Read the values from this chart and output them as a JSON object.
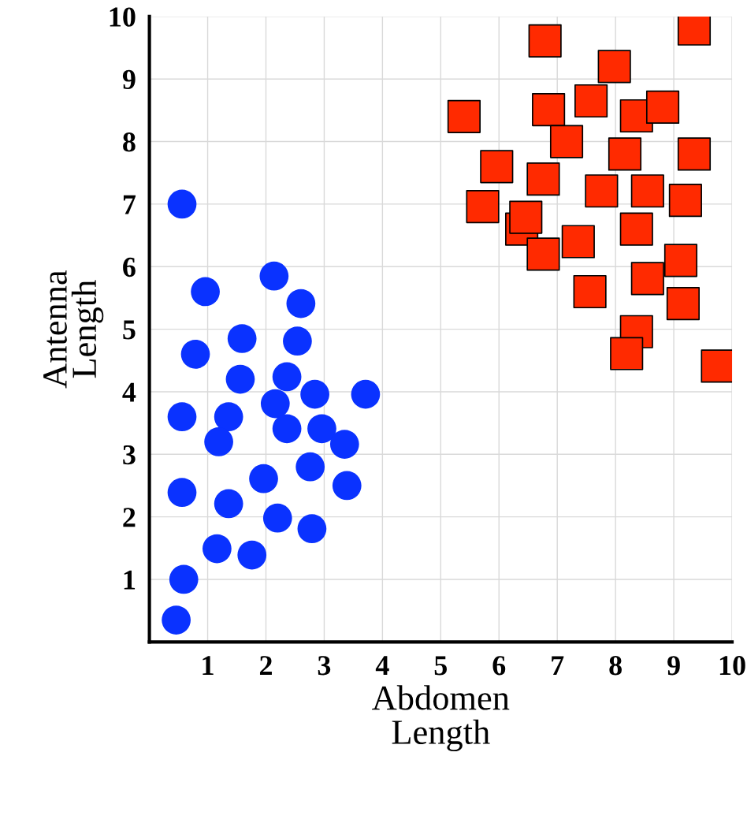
{
  "chart_data": {
    "type": "scatter",
    "xlabel": "Abdomen\nLength",
    "ylabel": "Antenna\nLength",
    "xlim": [
      0,
      10
    ],
    "ylim": [
      0,
      10
    ],
    "xticks": [
      1,
      2,
      3,
      4,
      5,
      6,
      7,
      8,
      9,
      10
    ],
    "yticks": [
      1,
      2,
      3,
      4,
      5,
      6,
      7,
      8,
      9,
      10
    ],
    "grid": true,
    "legend": false,
    "series": [
      {
        "color": "#0a32ff",
        "marker": "circle",
        "x": [
          0.56,
          0.96,
          2.14,
          2.6,
          0.79,
          1.59,
          2.54,
          1.56,
          2.36,
          0.56,
          1.36,
          2.16,
          2.84,
          3.71,
          1.19,
          2.36,
          2.96,
          3.35,
          2.76,
          1.96,
          0.56,
          3.39,
          1.36,
          2.2,
          2.79,
          1.16,
          1.76,
          0.59,
          0.46
        ],
        "values": [
          7.0,
          5.6,
          5.85,
          5.41,
          4.6,
          4.85,
          4.81,
          4.2,
          4.24,
          3.6,
          3.6,
          3.81,
          3.96,
          3.96,
          3.2,
          3.41,
          3.41,
          3.16,
          2.8,
          2.61,
          2.39,
          2.5,
          2.21,
          1.98,
          1.81,
          1.49,
          1.39,
          1.0,
          0.35
        ]
      },
      {
        "color": "#ff2a00",
        "marker": "square",
        "x": [
          5.4,
          6.79,
          9.35,
          7.98,
          7.58,
          6.85,
          8.36,
          8.81,
          7.16,
          5.96,
          8.16,
          9.35,
          6.76,
          7.76,
          8.55,
          9.2,
          5.72,
          6.39,
          6.46,
          8.36,
          7.36,
          6.76,
          9.12,
          8.55,
          7.56,
          9.16,
          8.36,
          8.19,
          9.75
        ],
        "values": [
          8.4,
          9.61,
          9.8,
          9.2,
          8.65,
          8.51,
          8.41,
          8.55,
          8.0,
          7.6,
          7.8,
          7.8,
          7.4,
          7.21,
          7.21,
          7.06,
          6.96,
          6.6,
          6.79,
          6.6,
          6.4,
          6.2,
          6.1,
          5.81,
          5.6,
          5.41,
          4.96,
          4.61,
          4.41
        ]
      }
    ]
  }
}
